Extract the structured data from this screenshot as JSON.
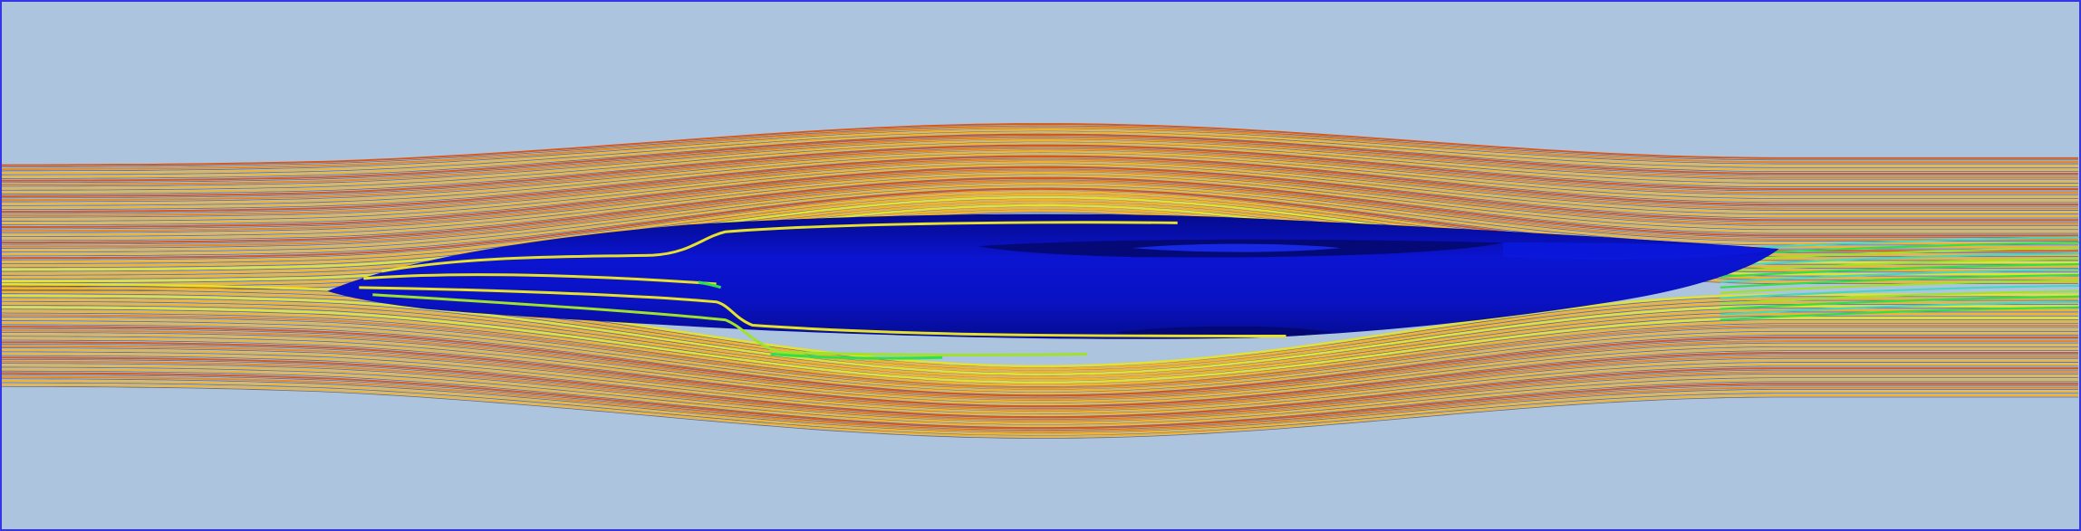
{
  "scene": {
    "background_color": "#adc4de",
    "frame_color": "#3535e6",
    "body_color": "#0a12c8",
    "body_shadow_color": "#03086a",
    "streamline_palette": [
      "#d8581a",
      "#e8871d",
      "#f1b32b",
      "#e6e12a",
      "#9ee22a",
      "#2fe04a",
      "#46d7c0"
    ]
  }
}
